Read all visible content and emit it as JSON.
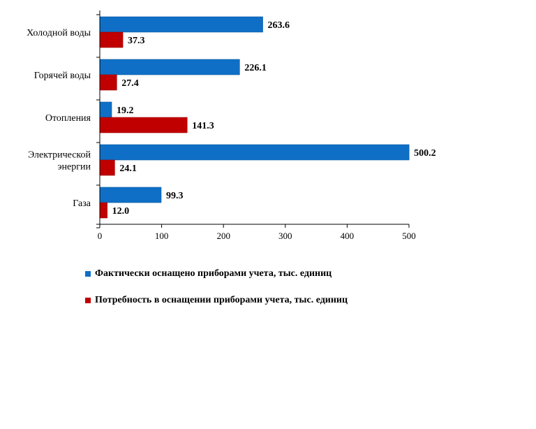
{
  "chart_data": {
    "type": "bar",
    "orientation": "horizontal",
    "categories": [
      "Холодной воды",
      "Горячей воды",
      "Отопления",
      "Электрической энергии",
      "Газа"
    ],
    "category_lines": [
      [
        "Холодной воды"
      ],
      [
        "Горячей воды"
      ],
      [
        "Отопления"
      ],
      [
        "Электрической",
        "энергии"
      ],
      [
        "Газа"
      ]
    ],
    "series": [
      {
        "name": "Фактически оснащено приборами учета, тыс. единиц",
        "color": "#0F6FC6",
        "values": [
          263.6,
          226.1,
          19.2,
          500.2,
          99.3
        ]
      },
      {
        "name": "Потребность в оснащении приборами учета, тыс. единиц",
        "color": "#C00000",
        "values": [
          37.3,
          27.4,
          141.3,
          24.1,
          12.0
        ]
      }
    ],
    "value_labels": [
      [
        "263.6",
        "226.1",
        "19.2",
        "500.2",
        "99.3"
      ],
      [
        "37.3",
        "27.4",
        "141.3",
        "24.1",
        "12.0"
      ]
    ],
    "xlim": [
      0,
      500
    ],
    "xticks": [
      0,
      100,
      200,
      300,
      400,
      500
    ],
    "xtick_labels": [
      "0",
      "100",
      "200",
      "300",
      "400",
      "500"
    ],
    "grid": false,
    "legend_position": "bottom-left"
  }
}
